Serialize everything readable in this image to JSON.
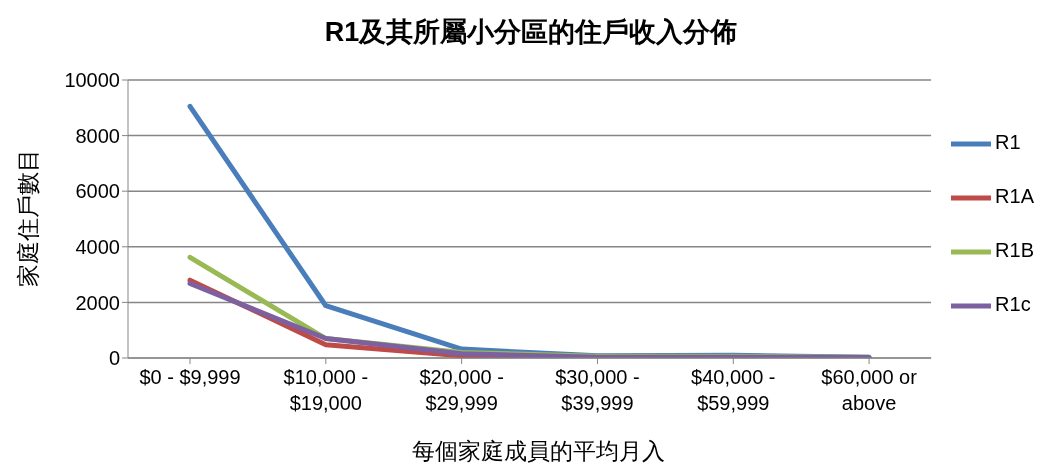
{
  "chart_data": {
    "type": "line",
    "title": "R1及其所屬小分區的住戶收入分佈",
    "xlabel": "每個家庭成員的平均月入",
    "ylabel": "家庭住戶數目",
    "categories": [
      "$0 - $9,999",
      "$10,000 -\n$19,000",
      "$20,000 -\n$29,999",
      "$30,000 -\n$39,999",
      "$40,000 -\n$59,999",
      "$60,000 or\nabove"
    ],
    "series": [
      {
        "name": "R1",
        "color": "#4a7ebb",
        "values": [
          9050,
          1880,
          320,
          80,
          100,
          30
        ]
      },
      {
        "name": "R1A",
        "color": "#be4b48",
        "values": [
          2800,
          480,
          80,
          20,
          null,
          null
        ]
      },
      {
        "name": "R1B",
        "color": "#98b954",
        "values": [
          3620,
          700,
          200,
          60,
          60,
          30
        ]
      },
      {
        "name": "R1c",
        "color": "#7d60a0",
        "values": [
          2680,
          700,
          150,
          30,
          30,
          20
        ]
      }
    ],
    "ylim": [
      0,
      10000
    ],
    "yticks": [
      0,
      2000,
      4000,
      6000,
      8000,
      10000
    ],
    "grid": "y",
    "legend": "right",
    "marker": "none",
    "line_style": "solid"
  }
}
